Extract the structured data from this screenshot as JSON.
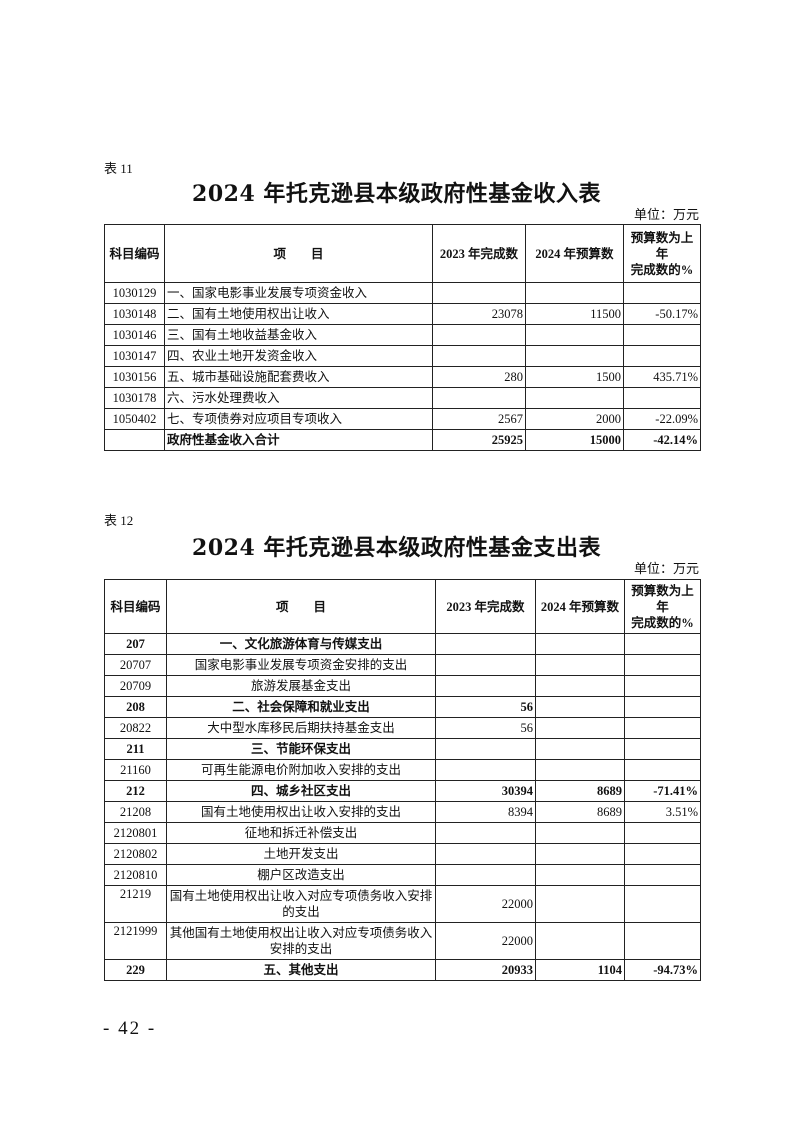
{
  "table11": {
    "label": "表 11",
    "title": "2024 年托克逊县本级政府性基金收入表",
    "unit": "单位：万元",
    "headers": [
      "科目编码",
      "项　　目",
      "2023 年完成数",
      "2024 年预算数",
      "预算数为上年\n完成数的%"
    ],
    "rows": [
      {
        "code": "1030129",
        "item": "一、国家电影事业发展专项资金收入",
        "y2023": "",
        "y2024": "",
        "pct": "",
        "bold": false
      },
      {
        "code": "1030148",
        "item": "二、国有土地使用权出让收入",
        "y2023": "23078",
        "y2024": "11500",
        "pct": "-50.17%",
        "bold": false
      },
      {
        "code": "1030146",
        "item": "三、国有土地收益基金收入",
        "y2023": "",
        "y2024": "",
        "pct": "",
        "bold": false
      },
      {
        "code": "1030147",
        "item": "四、农业土地开发资金收入",
        "y2023": "",
        "y2024": "",
        "pct": "",
        "bold": false
      },
      {
        "code": "1030156",
        "item": "五、城市基础设施配套费收入",
        "y2023": "280",
        "y2024": "1500",
        "pct": "435.71%",
        "bold": false
      },
      {
        "code": "1030178",
        "item": "六、污水处理费收入",
        "y2023": "",
        "y2024": "",
        "pct": "",
        "bold": false
      },
      {
        "code": "1050402",
        "item": "七、专项债券对应项目专项收入",
        "y2023": "2567",
        "y2024": "2000",
        "pct": "-22.09%",
        "bold": false
      },
      {
        "code": "",
        "item": "政府性基金收入合计",
        "y2023": "25925",
        "y2024": "15000",
        "pct": "-42.14%",
        "bold": true
      }
    ]
  },
  "table12": {
    "label": "表 12",
    "title": "2024 年托克逊县本级政府性基金支出表",
    "unit": "单位：万元",
    "headers": [
      "科目编码",
      "项　　目",
      "2023 年完成数",
      "2024 年预算数",
      "预算数为上年\n完成数的%"
    ],
    "rows": [
      {
        "code": "207",
        "item": "一、文化旅游体育与传媒支出",
        "y2023": "",
        "y2024": "",
        "pct": "",
        "bold": true
      },
      {
        "code": "20707",
        "item": "国家电影事业发展专项资金安排的支出",
        "y2023": "",
        "y2024": "",
        "pct": "",
        "bold": false
      },
      {
        "code": "20709",
        "item": "旅游发展基金支出",
        "y2023": "",
        "y2024": "",
        "pct": "",
        "bold": false
      },
      {
        "code": "208",
        "item": "二、社会保障和就业支出",
        "y2023": "56",
        "y2024": "",
        "pct": "",
        "bold": true
      },
      {
        "code": "20822",
        "item": "大中型水库移民后期扶持基金支出",
        "y2023": "56",
        "y2024": "",
        "pct": "",
        "bold": false
      },
      {
        "code": "211",
        "item": "三、节能环保支出",
        "y2023": "",
        "y2024": "",
        "pct": "",
        "bold": true
      },
      {
        "code": "21160",
        "item": "可再生能源电价附加收入安排的支出",
        "y2023": "",
        "y2024": "",
        "pct": "",
        "bold": false
      },
      {
        "code": "212",
        "item": "四、城乡社区支出",
        "y2023": "30394",
        "y2024": "8689",
        "pct": "-71.41%",
        "bold": true
      },
      {
        "code": "21208",
        "item": "国有土地使用权出让收入安排的支出",
        "y2023": "8394",
        "y2024": "8689",
        "pct": "3.51%",
        "bold": false
      },
      {
        "code": "2120801",
        "item": "征地和拆迁补偿支出",
        "y2023": "",
        "y2024": "",
        "pct": "",
        "bold": false
      },
      {
        "code": "2120802",
        "item": "土地开发支出",
        "y2023": "",
        "y2024": "",
        "pct": "",
        "bold": false
      },
      {
        "code": "2120810",
        "item": "棚户区改造支出",
        "y2023": "",
        "y2024": "",
        "pct": "",
        "bold": false
      },
      {
        "code": "21219",
        "item": "国有土地使用权出让收入对应专项债务收入安排的支出",
        "y2023": "22000",
        "y2024": "",
        "pct": "",
        "bold": false,
        "tall": true
      },
      {
        "code": "2121999",
        "item": "其他国有土地使用权出让收入对应专项债务收入安排的支出",
        "y2023": "22000",
        "y2024": "",
        "pct": "",
        "bold": false,
        "tall": true
      },
      {
        "code": "229",
        "item": "五、其他支出",
        "y2023": "20933",
        "y2024": "1104",
        "pct": "-94.73%",
        "bold": true
      }
    ]
  },
  "footer": {
    "page_number": "- 42 -"
  }
}
